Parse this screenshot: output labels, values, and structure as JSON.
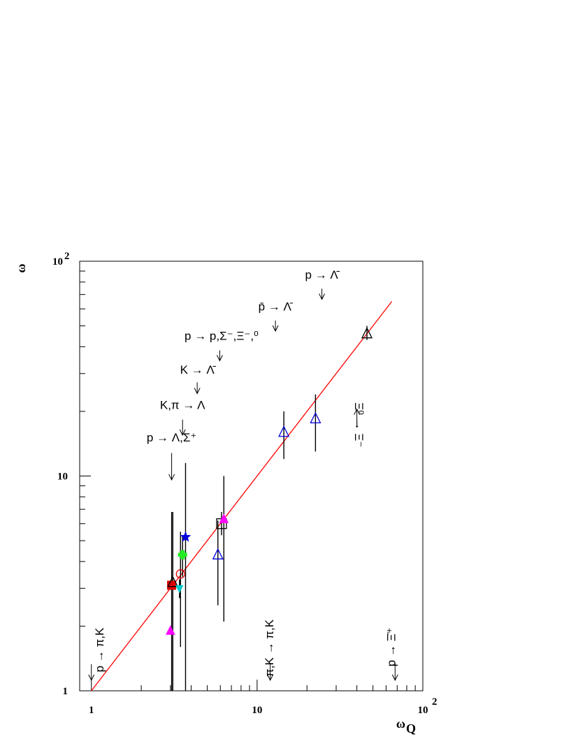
{
  "chart_data": {
    "type": "scatter",
    "title": "",
    "xlabel": "ω",
    "xlabel_sub": "Q",
    "ylabel": "ω",
    "x_scale": "log",
    "y_scale": "log",
    "xlim": [
      0.85,
      100
    ],
    "ylim": [
      1,
      100
    ],
    "x_ticks": [
      {
        "value": 1,
        "label": "1"
      },
      {
        "value": 10,
        "label": "10"
      },
      {
        "value": 100,
        "label": "10",
        "exp": "2"
      }
    ],
    "y_ticks": [
      {
        "value": 1,
        "label": "1"
      },
      {
        "value": 10,
        "label": "10"
      },
      {
        "value": 100,
        "label": "10",
        "exp": "2"
      }
    ],
    "grid": false,
    "fit_line": {
      "color": "#ff0000",
      "x": [
        1,
        65
      ],
      "y": [
        1,
        65
      ]
    },
    "points": [
      {
        "marker": "triangle-filled",
        "color": "#ff00ff",
        "x": 3.0,
        "y": 1.9,
        "yerr": [
          1.0,
          1.0
        ]
      },
      {
        "marker": "square-filled",
        "color": "#dd0000",
        "x": 3.05,
        "y": 3.1,
        "yerr": [
          1.0,
          6.8
        ]
      },
      {
        "marker": "triangle-open",
        "color": "#000000",
        "x": 3.1,
        "y": 3.2,
        "yerr": [
          1.0,
          6.8
        ]
      },
      {
        "marker": "triangle-down-filled",
        "color": "#00cccc",
        "x": 3.4,
        "y": 3.0,
        "yerr": [
          2.7,
          3.3
        ]
      },
      {
        "marker": "circle-open",
        "color": "#dd0000",
        "x": 3.45,
        "y": 3.5,
        "yerr": [
          1.6,
          5.5
        ]
      },
      {
        "marker": "cross-filled",
        "color": "#22ee22",
        "x": 3.55,
        "y": 4.3,
        "yerr": [
          3.4,
          5.2
        ]
      },
      {
        "marker": "star-filled",
        "color": "#0000dd",
        "x": 3.7,
        "y": 5.2,
        "yerr": [
          1.0,
          11.5
        ]
      },
      {
        "marker": "triangle-open",
        "color": "#0000dd",
        "x": 5.8,
        "y": 4.3,
        "yerr": [
          2.5,
          6.2
        ]
      },
      {
        "marker": "square-open",
        "color": "#000000",
        "x": 6.1,
        "y": 6.0,
        "yerr": [
          5.3,
          6.8
        ]
      },
      {
        "marker": "triangle-filled",
        "color": "#ff00ff",
        "x": 6.3,
        "y": 6.3,
        "yerr": [
          2.1,
          10.0
        ]
      },
      {
        "marker": "triangle-open",
        "color": "#0000dd",
        "x": 14.5,
        "y": 16.0,
        "yerr": [
          12.0,
          20.0
        ]
      },
      {
        "marker": "triangle-open",
        "color": "#0000dd",
        "x": 22.5,
        "y": 18.5,
        "yerr": [
          13.0,
          24.0
        ]
      },
      {
        "marker": "triangle-open",
        "color": "#000000",
        "x": 46.0,
        "y": 46.0,
        "yerr": [
          43.0,
          50.0
        ]
      }
    ],
    "annotations": [
      {
        "text": "p → Λ̄",
        "x": 24.5,
        "y": 83
      },
      {
        "text": "p̄ → Λ̄",
        "x": 12.8,
        "y": 59
      },
      {
        "text": "p → p,Σ⁻,Ξ⁻,⁰",
        "x": 6.1,
        "y": 43
      },
      {
        "text": "K → Λ̄",
        "x": 4.35,
        "y": 30
      },
      {
        "text": "K,π → Λ",
        "x": 3.55,
        "y": 20.5
      },
      {
        "text": "p → Λ,Σ⁺",
        "x": 3.05,
        "y": 14.5
      },
      {
        "text": "p → π,K",
        "x": 1.18,
        "y": 1.55,
        "rotate": -90
      },
      {
        "text": "π,K → π,K",
        "x": 12.5,
        "y": 1.58,
        "rotate": -90
      },
      {
        "text": "p → Ξ̄⁺",
        "x": 68,
        "y": 1.6,
        "rotate": -90
      },
      {
        "text": "Ξ⁰ → Ξ⁻",
        "x": 39,
        "y": 17.3,
        "rotate": 90
      }
    ],
    "arrows": [
      {
        "x": 3.05,
        "y1": 12.8,
        "y2": 9.6
      },
      {
        "x": 3.55,
        "y1": 18.3,
        "y2": 15.5
      },
      {
        "x": 4.35,
        "y1": 27.3,
        "y2": 24.2
      },
      {
        "x": 5.95,
        "y1": 38.5,
        "y2": 34.4
      },
      {
        "x": 12.9,
        "y1": 53,
        "y2": 47.3
      },
      {
        "x": 24.6,
        "y1": 74.5,
        "y2": 66.5
      },
      {
        "x": 1.0,
        "y1": 1.33,
        "y2": 1.12
      },
      {
        "x": 12.0,
        "y1": 1.35,
        "y2": 1.12
      },
      {
        "x": 68.0,
        "y1": 1.35,
        "y2": 1.12
      },
      {
        "x": 40.0,
        "y1": 17.0,
        "y2": 20.5
      }
    ]
  }
}
